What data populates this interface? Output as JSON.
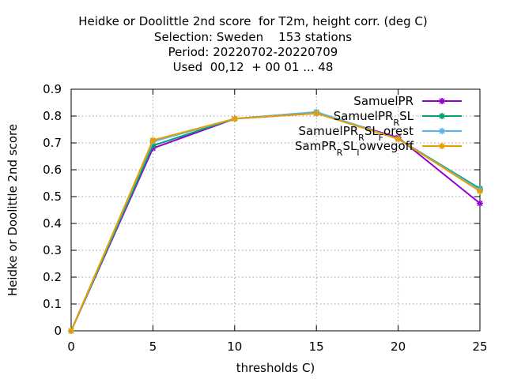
{
  "title_lines": [
    "Heidke or Doolittle 2nd score  for T2m, height corr. (deg C)",
    "Selection: Sweden    153 stations",
    "Period: 20220702-20220709",
    "Used  00,12  + 00 01 ... 48"
  ],
  "chart_data": {
    "type": "line",
    "title": "Heidke or Doolittle 2nd score  for T2m, height corr. (deg C)",
    "xlabel": "thresholds C)",
    "ylabel": "Heidke or Doolittle 2nd score",
    "x": [
      0,
      5,
      10,
      15,
      20,
      25
    ],
    "xlim": [
      0,
      25
    ],
    "ylim": [
      0,
      0.9
    ],
    "xticks": [
      "0",
      "5",
      "10",
      "15",
      "20",
      "25"
    ],
    "yticks": [
      "0",
      "0.1",
      "0.2",
      "0.3",
      "0.4",
      "0.5",
      "0.6",
      "0.7",
      "0.8",
      "0.9"
    ],
    "grid": true,
    "legend_position": "top-right",
    "series": [
      {
        "name": "SamuelPR",
        "legend_parts": [
          [
            "SamuelPR",
            ""
          ]
        ],
        "color": "#9400d3",
        "values": [
          0,
          0.68,
          0.79,
          0.81,
          0.72,
          0.475
        ]
      },
      {
        "name": "SamuelPR_RSL",
        "legend_parts": [
          [
            "SamuelPR",
            ""
          ],
          [
            "R",
            "sub"
          ],
          [
            "SL",
            ""
          ]
        ],
        "color": "#009e73",
        "values": [
          0,
          0.69,
          0.79,
          0.815,
          0.715,
          0.53
        ]
      },
      {
        "name": "SamuelPR_RSL_Forest",
        "legend_parts": [
          [
            "SamuelPR",
            ""
          ],
          [
            "R",
            "sub"
          ],
          [
            "SL",
            ""
          ],
          [
            "F",
            "sub"
          ],
          [
            "orest",
            ""
          ]
        ],
        "color": "#56b4e9",
        "values": [
          0,
          0.705,
          0.79,
          0.815,
          0.715,
          0.525
        ]
      },
      {
        "name": "SamPR_RSL_lowvegoff",
        "legend_parts": [
          [
            "SamPR",
            ""
          ],
          [
            "R",
            "sub"
          ],
          [
            "SL",
            ""
          ],
          [
            "l",
            "sub"
          ],
          [
            "owvegoff",
            ""
          ]
        ],
        "color": "#e69f00",
        "values": [
          0,
          0.71,
          0.79,
          0.81,
          0.715,
          0.52
        ]
      }
    ]
  }
}
